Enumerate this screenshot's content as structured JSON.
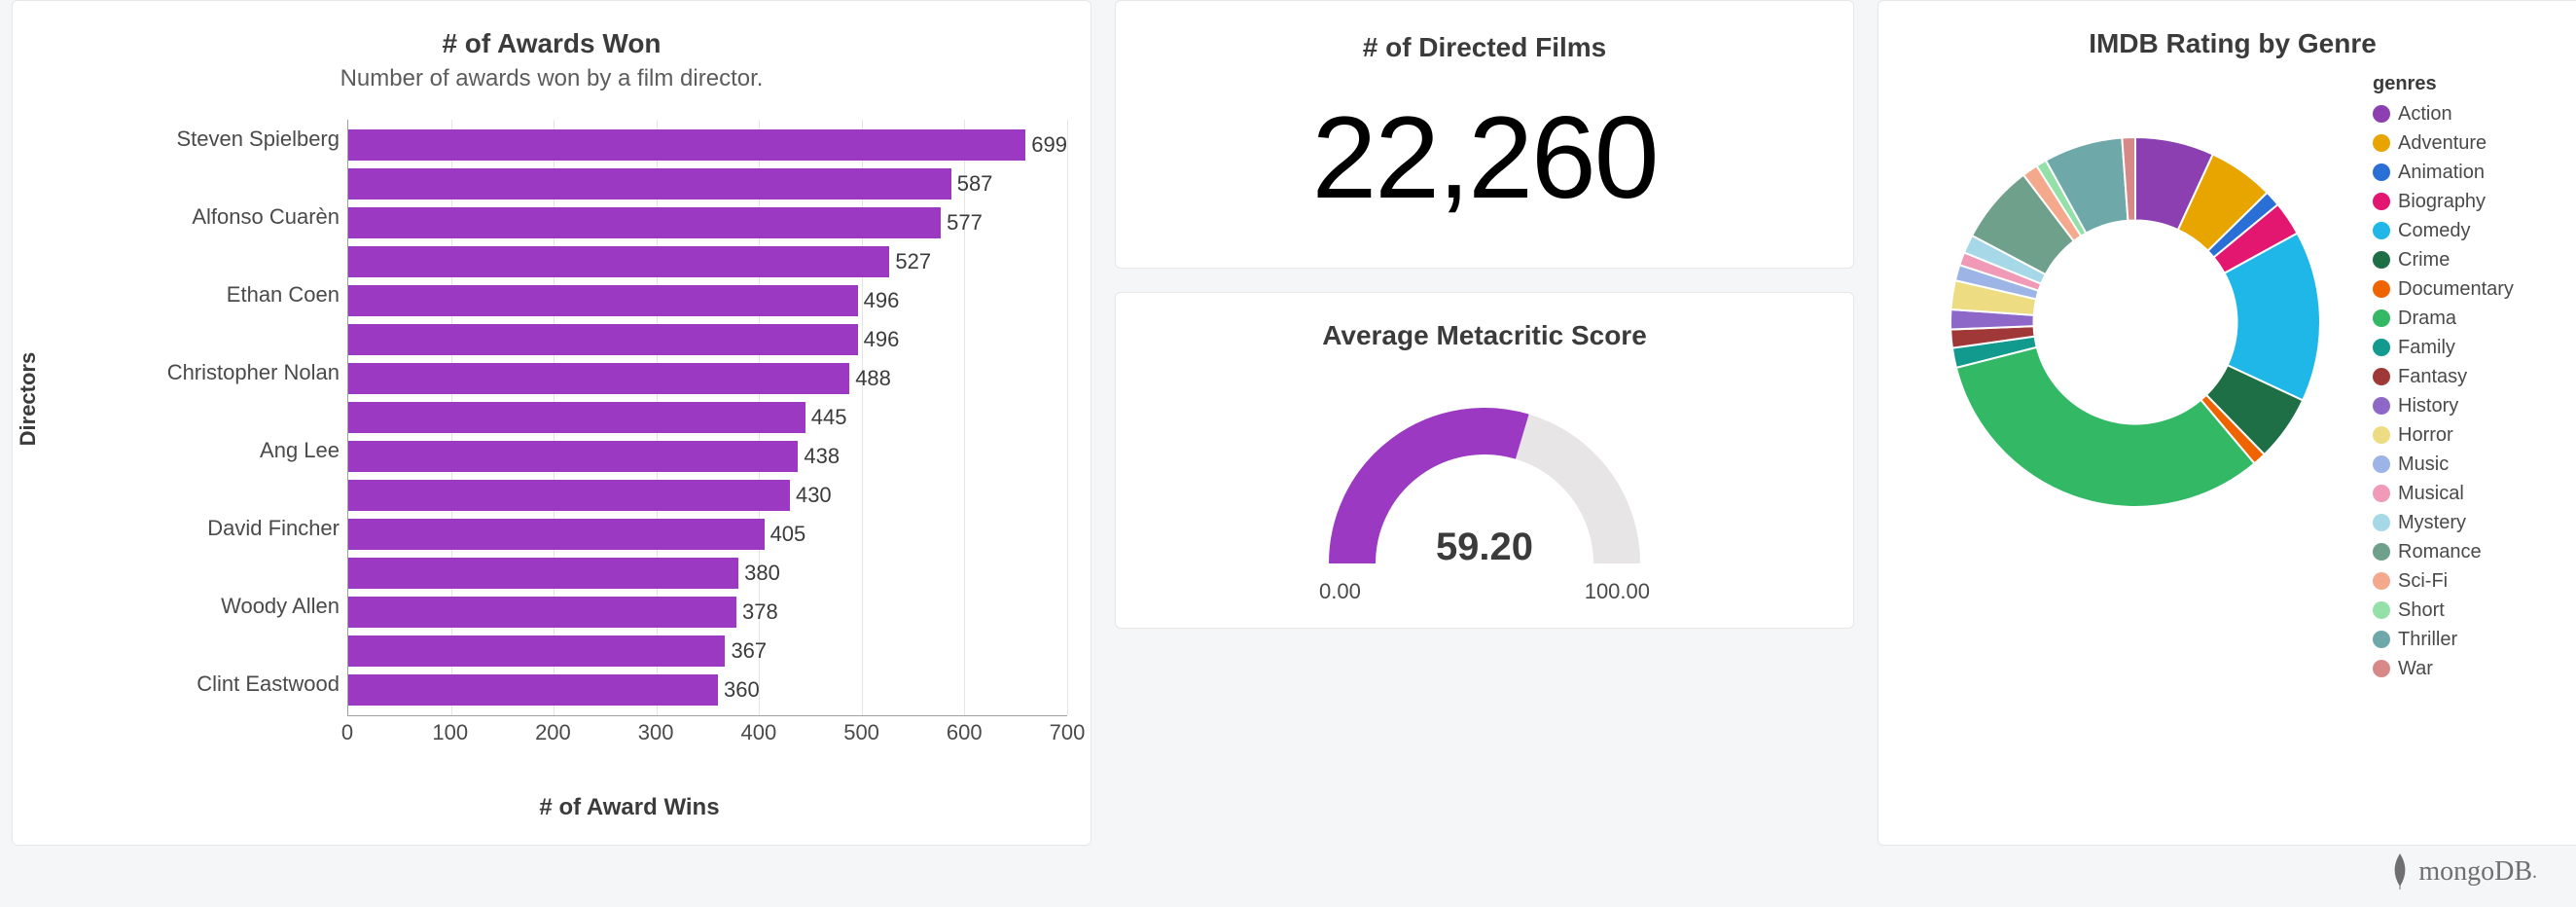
{
  "awards_chart": {
    "type": "bar-horizontal",
    "title": "# of Awards Won",
    "subtitle": "Number of awards won by a film director.",
    "y_axis_title": "Directors",
    "x_axis_title": "# of Award Wins",
    "bar_color": "#9b39c2",
    "grid_color": "#e5e5e5",
    "axis_color": "#a0a0a0",
    "text_color": "#3b3b3b",
    "xlim": [
      0,
      700
    ],
    "xtick_step": 100,
    "xticks": [
      0,
      100,
      200,
      300,
      400,
      500,
      600,
      700
    ],
    "y_tick_labels": [
      "Steven Spielberg",
      "Alfonso Cuarèn",
      "Ethan Coen",
      "Christopher Nolan",
      "Ang Lee",
      "David Fincher",
      "Woody Allen",
      "Clint Eastwood"
    ],
    "bars": [
      {
        "label": "Steven Spielberg",
        "value": 699
      },
      {
        "label": "",
        "value": 587
      },
      {
        "label": "Alfonso Cuarèn",
        "value": 577
      },
      {
        "label": "",
        "value": 527
      },
      {
        "label": "Ethan Coen",
        "value": 496
      },
      {
        "label": "",
        "value": 496
      },
      {
        "label": "Christopher Nolan",
        "value": 488
      },
      {
        "label": "",
        "value": 445
      },
      {
        "label": "Ang Lee",
        "value": 438
      },
      {
        "label": "",
        "value": 430
      },
      {
        "label": "David Fincher",
        "value": 405
      },
      {
        "label": "",
        "value": 380
      },
      {
        "label": "Woody Allen",
        "value": 378
      },
      {
        "label": "",
        "value": 367
      },
      {
        "label": "Clint Eastwood",
        "value": 360
      }
    ],
    "title_fontsize": 28,
    "subtitle_fontsize": 24,
    "label_fontsize": 22
  },
  "films_card": {
    "title": "# of Directed Films",
    "value": "22,260",
    "title_fontsize": 28,
    "value_fontsize": 120,
    "value_color": "#000000"
  },
  "gauge": {
    "type": "gauge",
    "title": "Average Metacritic Score",
    "value": 59.2,
    "value_text": "59.20",
    "min": 0,
    "max": 100,
    "min_text": "0.00",
    "max_text": "100.00",
    "fill_color": "#9b39c2",
    "track_color": "#e7e5e5",
    "arc_thickness": 48,
    "title_fontsize": 28,
    "value_fontsize": 40
  },
  "donut": {
    "type": "donut",
    "title": "IMDB Rating by Genre",
    "legend_title": "genres",
    "inner_radius_ratio": 0.55,
    "background_color": "#ffffff",
    "slices": [
      {
        "label": "Action",
        "color": "#8b3fb0",
        "value": 6.0
      },
      {
        "label": "Adventure",
        "color": "#e8a500",
        "value": 5.0
      },
      {
        "label": "Animation",
        "color": "#2a6fd6",
        "value": 1.2
      },
      {
        "label": "Biography",
        "color": "#e31670",
        "value": 2.6
      },
      {
        "label": "Comedy",
        "color": "#1fb6e8",
        "value": 13.0
      },
      {
        "label": "Crime",
        "color": "#1e6e46",
        "value": 5.0
      },
      {
        "label": "Documentary",
        "color": "#f06400",
        "value": 1.0
      },
      {
        "label": "Drama",
        "color": "#33b966",
        "value": 28.0
      },
      {
        "label": "Family",
        "color": "#139a8e",
        "value": 1.5
      },
      {
        "label": "Fantasy",
        "color": "#a03838",
        "value": 1.4
      },
      {
        "label": "History",
        "color": "#8d68c9",
        "value": 1.5
      },
      {
        "label": "Horror",
        "color": "#eedc82",
        "value": 2.2
      },
      {
        "label": "Music",
        "color": "#9db4e6",
        "value": 1.2
      },
      {
        "label": "Musical",
        "color": "#f09ab7",
        "value": 1.0
      },
      {
        "label": "Mystery",
        "color": "#a7d8e8",
        "value": 1.4
      },
      {
        "label": "Romance",
        "color": "#6fa08c",
        "value": 6.0
      },
      {
        "label": "Sci-Fi",
        "color": "#f4a98c",
        "value": 1.2
      },
      {
        "label": "Short",
        "color": "#93e0a8",
        "value": 0.8
      },
      {
        "label": "Thriller",
        "color": "#6fa8a8",
        "value": 6.0
      },
      {
        "label": "War",
        "color": "#d98888",
        "value": 1.0
      }
    ]
  },
  "footer": {
    "brand": "mongoDB",
    "brand_color": "#6f6f6f",
    "leaf_color": "#6f6f6f"
  }
}
